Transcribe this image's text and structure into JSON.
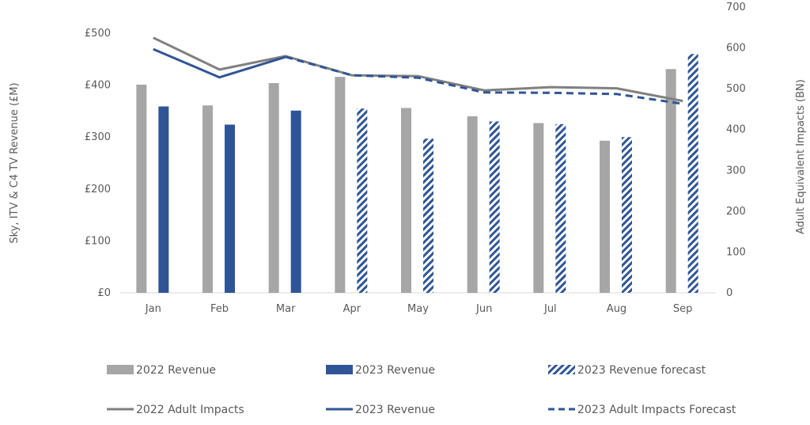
{
  "chart_data": {
    "type": "bar",
    "categories": [
      "Jan",
      "Feb",
      "Mar",
      "Apr",
      "May",
      "Jun",
      "Jul",
      "Aug",
      "Sep"
    ],
    "series": [
      {
        "name": "2022 Revenue",
        "kind": "bar",
        "axis": "left",
        "color": "#a6a6a6",
        "values": [
          401,
          361,
          404,
          416,
          356,
          340,
          327,
          293,
          431
        ]
      },
      {
        "name": "2023 Revenue",
        "kind": "bar",
        "axis": "left",
        "color": "#2f5597",
        "values": [
          359,
          324,
          351,
          null,
          null,
          null,
          null,
          null,
          null
        ]
      },
      {
        "name": "2023 Revenue forecast",
        "kind": "bar-hatched",
        "axis": "left",
        "color": "#2f5597",
        "values": [
          null,
          null,
          null,
          355,
          297,
          330,
          325,
          300,
          460
        ]
      },
      {
        "name": "2022 Adult Impacts",
        "kind": "line",
        "axis": "right",
        "color": "#808080",
        "values": [
          625,
          547,
          580,
          533,
          531,
          496,
          504,
          501,
          470
        ]
      },
      {
        "name": "2023 Revenue",
        "kind": "line",
        "axis": "right",
        "color": "#2f5597",
        "values": [
          597,
          528,
          578,
          null,
          null,
          null,
          null,
          null,
          null
        ]
      },
      {
        "name": "2023 Adult Impacts Forecast",
        "kind": "line-dashed",
        "axis": "right",
        "color": "#2f5597",
        "values": [
          null,
          null,
          578,
          533,
          527,
          491,
          490,
          487,
          463
        ]
      }
    ],
    "y_left": {
      "label": "Sky, ITV & C4 TV Revenue (£M)",
      "ticks": [
        "£0",
        "£100",
        "£200",
        "£300",
        "£400",
        "£500"
      ],
      "lim": [
        0,
        500
      ]
    },
    "y_right": {
      "label": "Adult Equivalent Impacts (BN)",
      "ticks": [
        "0",
        "100",
        "200",
        "300",
        "400",
        "500",
        "600",
        "700"
      ],
      "lim": [
        0,
        700
      ]
    },
    "legend": {
      "placement": "bottom"
    }
  }
}
